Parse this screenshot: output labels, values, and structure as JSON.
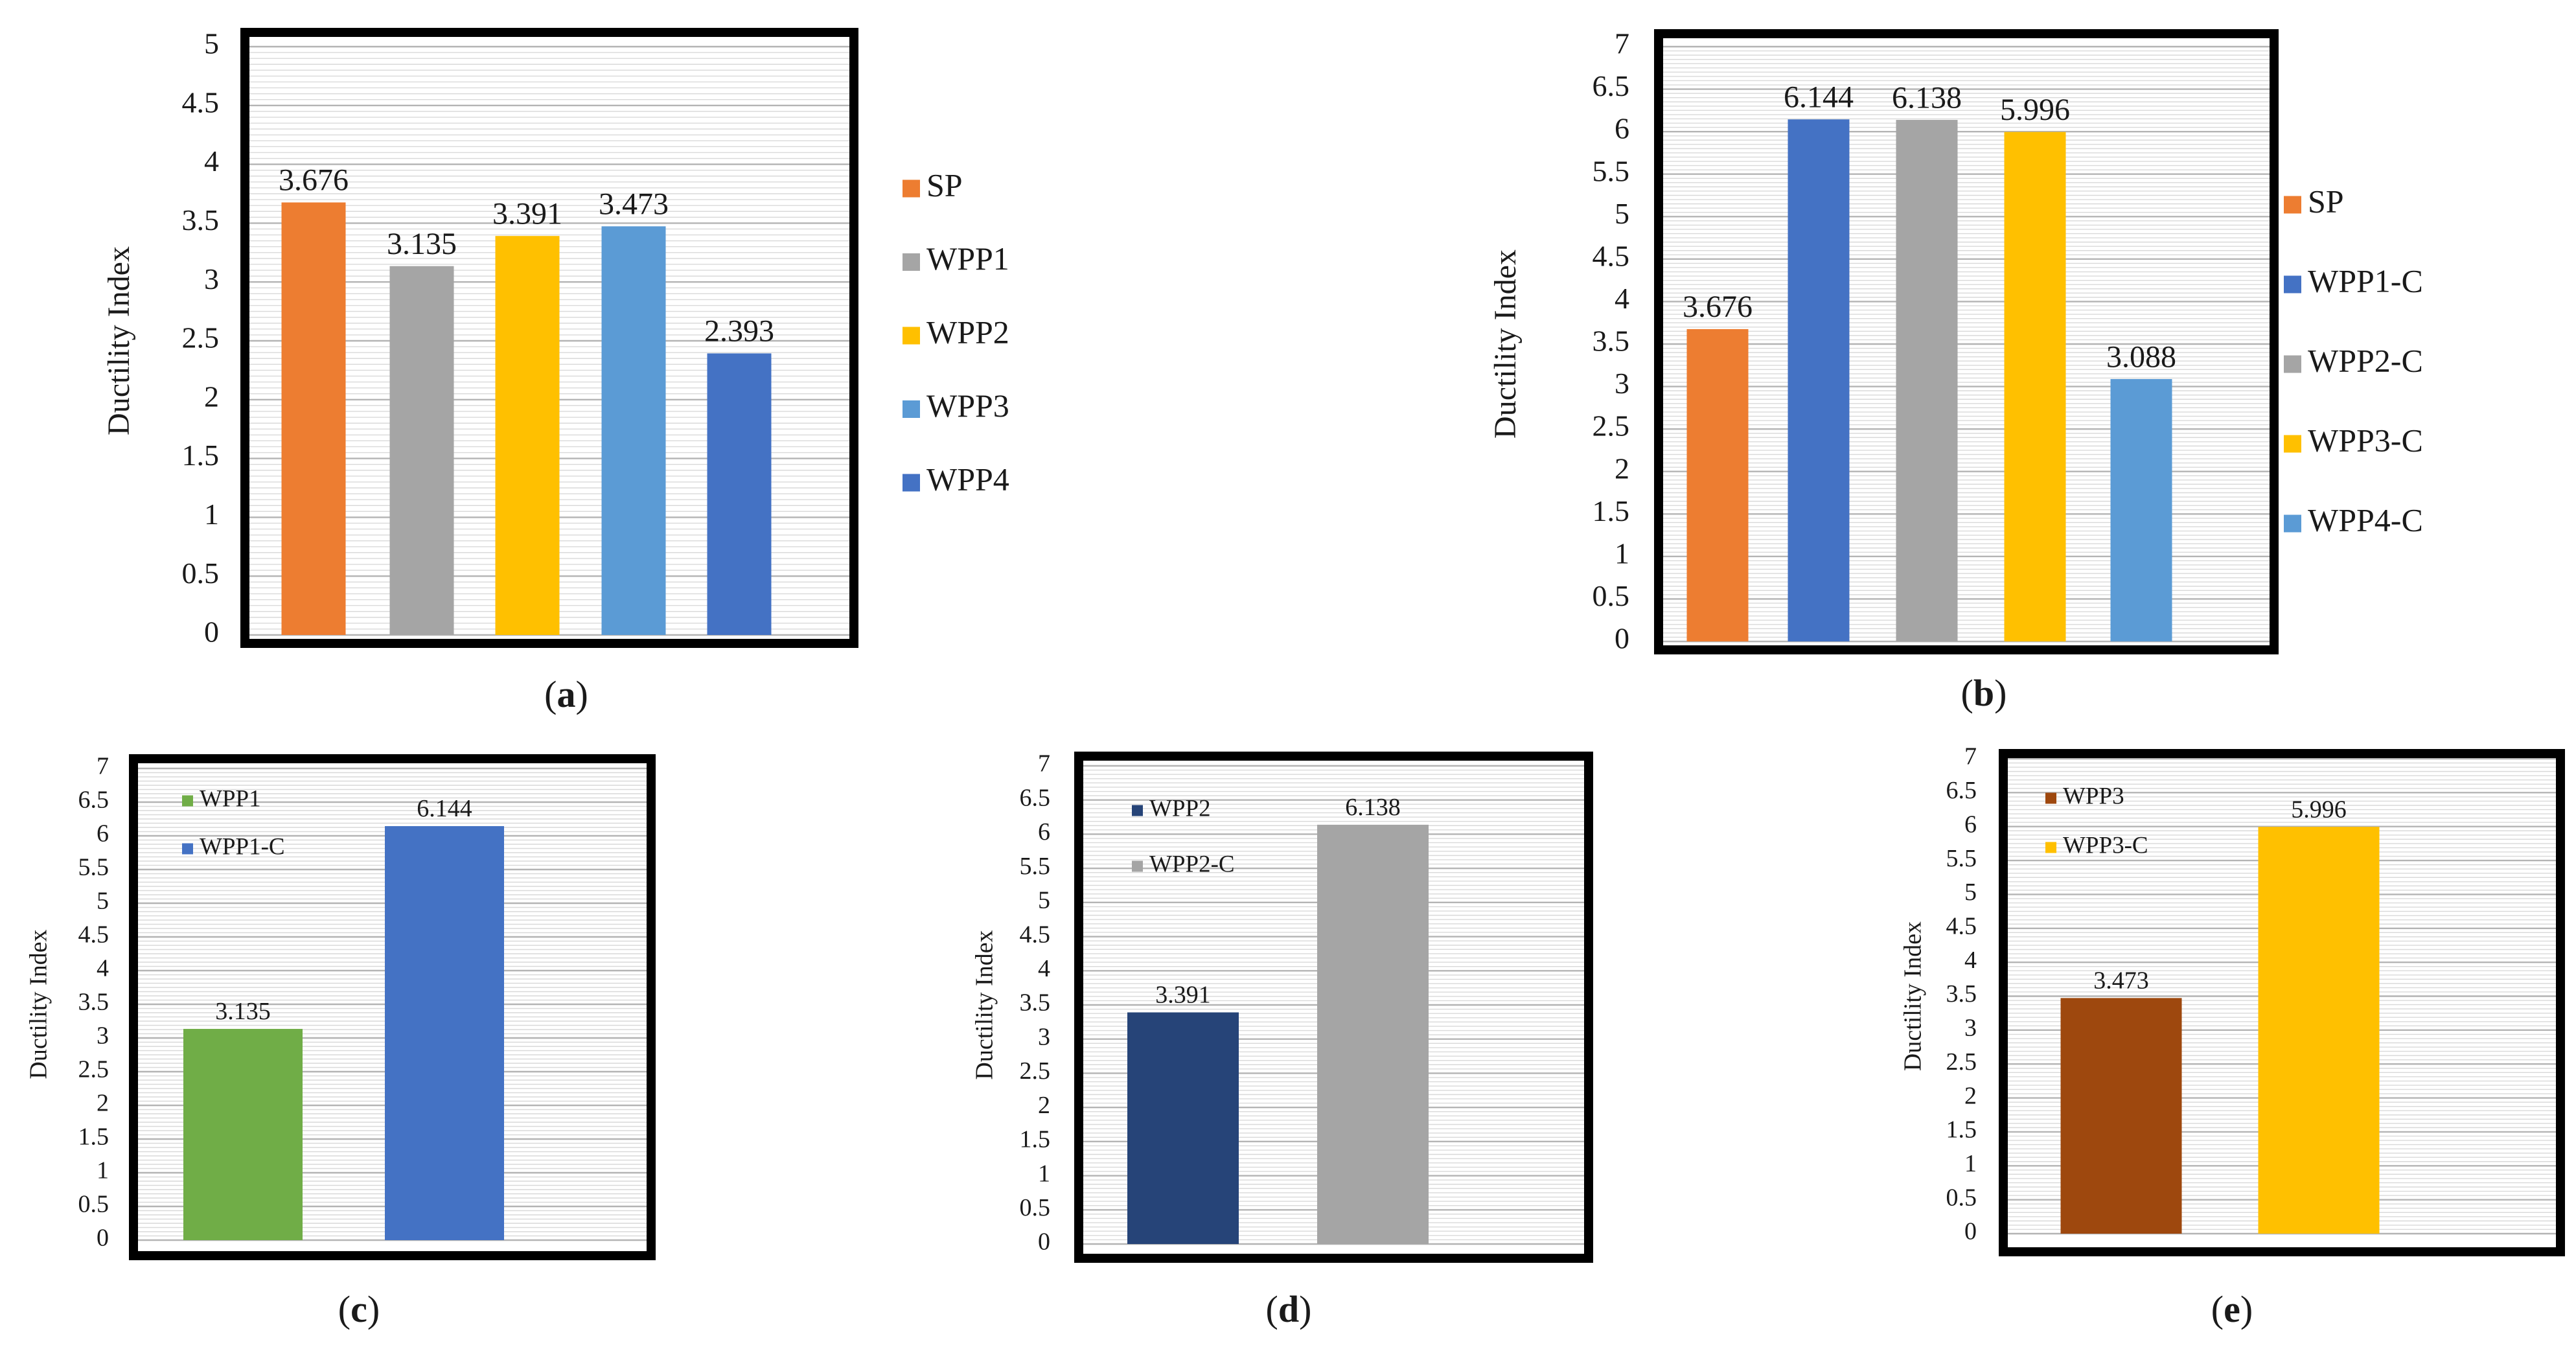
{
  "chart_data": [
    {
      "panel": "(a)",
      "type": "bar",
      "ylabel": "Ductility Index",
      "ylim": [
        0,
        5
      ],
      "ytick_step": 0.5,
      "ytick_labels": [
        "0",
        "0.5",
        "1",
        "1.5",
        "2",
        "2.5",
        "3",
        "3.5",
        "4",
        "4.5",
        "5"
      ],
      "grid": true,
      "legend_position": "right",
      "series": [
        {
          "name": "SP",
          "value": 3.676,
          "label": "3.676",
          "color": "#ED7D31"
        },
        {
          "name": "WPP1",
          "value": 3.135,
          "label": "3.135",
          "color": "#A5A5A5"
        },
        {
          "name": "WPP2",
          "value": 3.391,
          "label": "3.391",
          "color": "#FFC000"
        },
        {
          "name": "WPP3",
          "value": 3.473,
          "label": "3.473",
          "color": "#5B9BD5"
        },
        {
          "name": "WPP4",
          "value": 2.393,
          "label": "2.393",
          "color": "#4472C4"
        }
      ]
    },
    {
      "panel": "(b)",
      "type": "bar",
      "ylabel": "Ductility Index",
      "ylim": [
        0,
        7
      ],
      "ytick_step": 0.5,
      "ytick_labels": [
        "0",
        "0.5",
        "1",
        "1.5",
        "2",
        "2.5",
        "3",
        "3.5",
        "4",
        "4.5",
        "5",
        "5.5",
        "6",
        "6.5",
        "7"
      ],
      "grid": true,
      "legend_position": "right",
      "series": [
        {
          "name": "SP",
          "value": 3.676,
          "label": "3.676",
          "color": "#ED7D31"
        },
        {
          "name": "WPP1-C",
          "value": 6.144,
          "label": "6.144",
          "color": "#4472C4"
        },
        {
          "name": "WPP2-C",
          "value": 6.138,
          "label": "6.138",
          "color": "#A5A5A5"
        },
        {
          "name": "WPP3-C",
          "value": 5.996,
          "label": "5.996",
          "color": "#FFC000"
        },
        {
          "name": "WPP4-C",
          "value": 3.088,
          "label": "3.088",
          "color": "#5B9BD5"
        }
      ]
    },
    {
      "panel": "(c)",
      "type": "bar",
      "ylabel": "Ductility Index",
      "ylim": [
        0,
        7
      ],
      "ytick_step": 0.5,
      "ytick_labels": [
        "0",
        "0.5",
        "1",
        "1.5",
        "2",
        "2.5",
        "3",
        "3.5",
        "4",
        "4.5",
        "5",
        "5.5",
        "6",
        "6.5",
        "7"
      ],
      "grid": true,
      "legend_position": "top-left",
      "series": [
        {
          "name": "WPP1",
          "value": 3.135,
          "label": "3.135",
          "color": "#70AD47"
        },
        {
          "name": "WPP1-C",
          "value": 6.144,
          "label": "6.144",
          "color": "#4472C4"
        }
      ]
    },
    {
      "panel": "(d)",
      "type": "bar",
      "ylabel": "Ductility Index",
      "ylim": [
        0,
        7
      ],
      "ytick_step": 0.5,
      "ytick_labels": [
        "0",
        "0.5",
        "1",
        "1.5",
        "2",
        "2.5",
        "3",
        "3.5",
        "4",
        "4.5",
        "5",
        "5.5",
        "6",
        "6.5",
        "7"
      ],
      "grid": true,
      "legend_position": "top-left",
      "series": [
        {
          "name": "WPP2",
          "value": 3.391,
          "label": "3.391",
          "color": "#264478"
        },
        {
          "name": "WPP2-C",
          "value": 6.138,
          "label": "6.138",
          "color": "#A5A5A5"
        }
      ]
    },
    {
      "panel": "(e)",
      "type": "bar",
      "ylabel": "Ductility Index",
      "ylim": [
        0,
        7
      ],
      "ytick_step": 0.5,
      "ytick_labels": [
        "0",
        "0.5",
        "1",
        "1.5",
        "2",
        "2.5",
        "3",
        "3.5",
        "4",
        "4.5",
        "5",
        "5.5",
        "6",
        "6.5",
        "7"
      ],
      "grid": true,
      "legend_position": "top-left",
      "series": [
        {
          "name": "WPP3",
          "value": 3.473,
          "label": "3.473",
          "color": "#9E480E"
        },
        {
          "name": "WPP3-C",
          "value": 5.996,
          "label": "5.996",
          "color": "#FFC000"
        }
      ]
    }
  ]
}
